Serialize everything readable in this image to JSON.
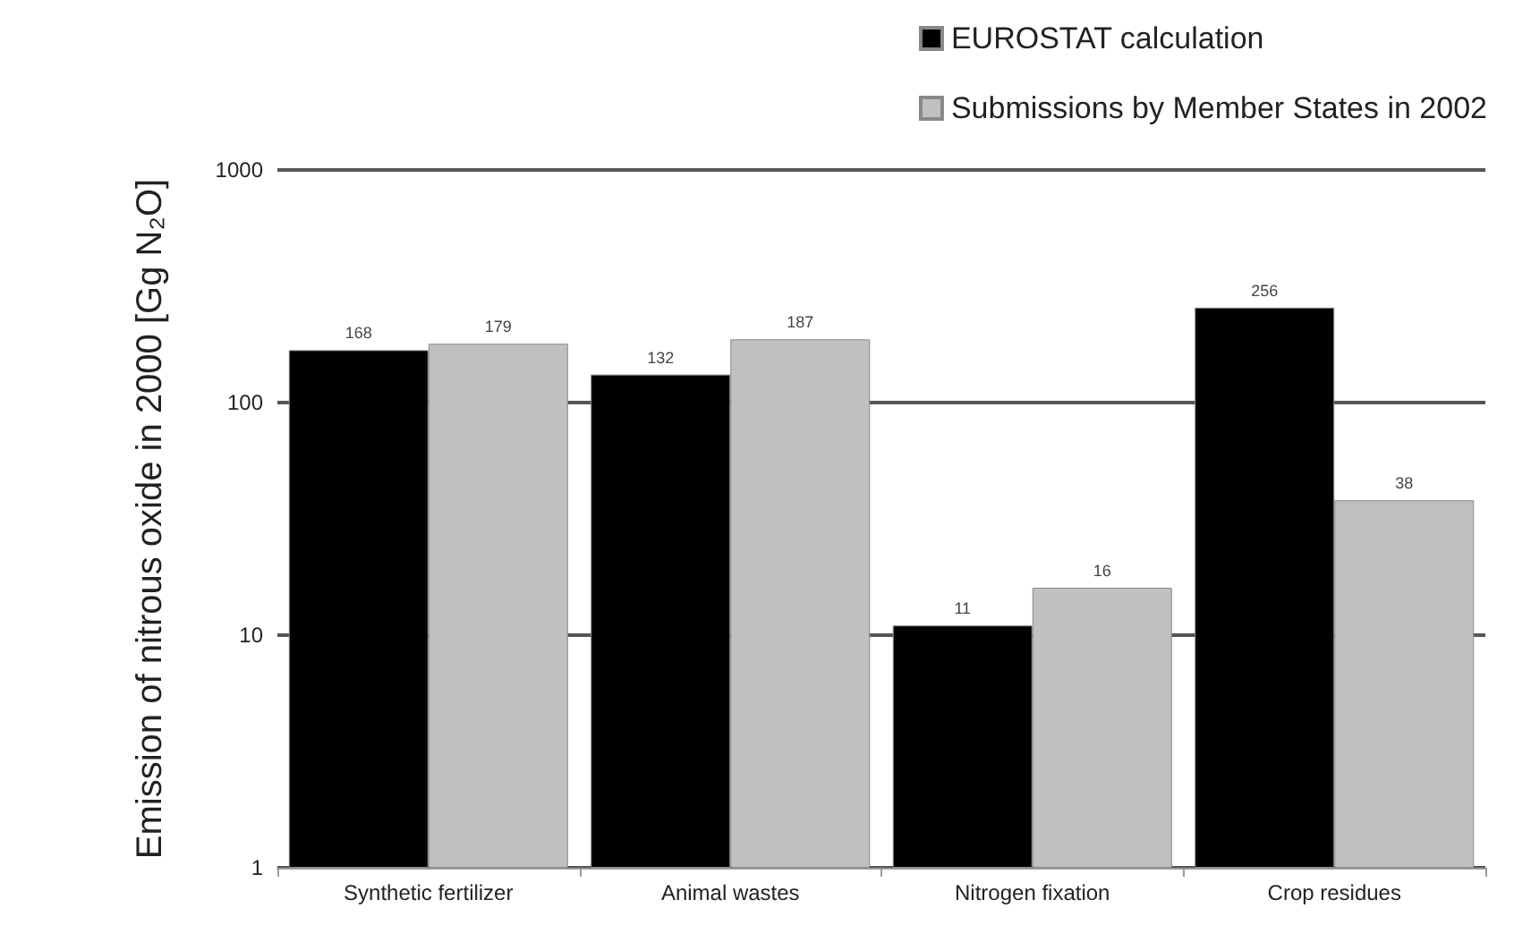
{
  "chart_data": {
    "type": "bar",
    "ylabel": "Emission of nitrous oxide in 2000 [Gg N₂O]",
    "categories": [
      "Synthetic fertilizer",
      "Animal wastes",
      "Nitrogen fixation",
      "Crop residues"
    ],
    "series": [
      {
        "name": "EUROSTAT calculation",
        "color": "#000000",
        "values": [
          168,
          132,
          11,
          256
        ]
      },
      {
        "name": "Submissions by Member States in 2002",
        "color": "#c0c0c0",
        "values": [
          179,
          187,
          16,
          38
        ]
      }
    ],
    "log": true,
    "ylim": [
      1,
      1000
    ],
    "yticks": [
      1,
      10,
      100,
      1000
    ],
    "grid": "y",
    "legend": "top right",
    "data_labels": true
  }
}
